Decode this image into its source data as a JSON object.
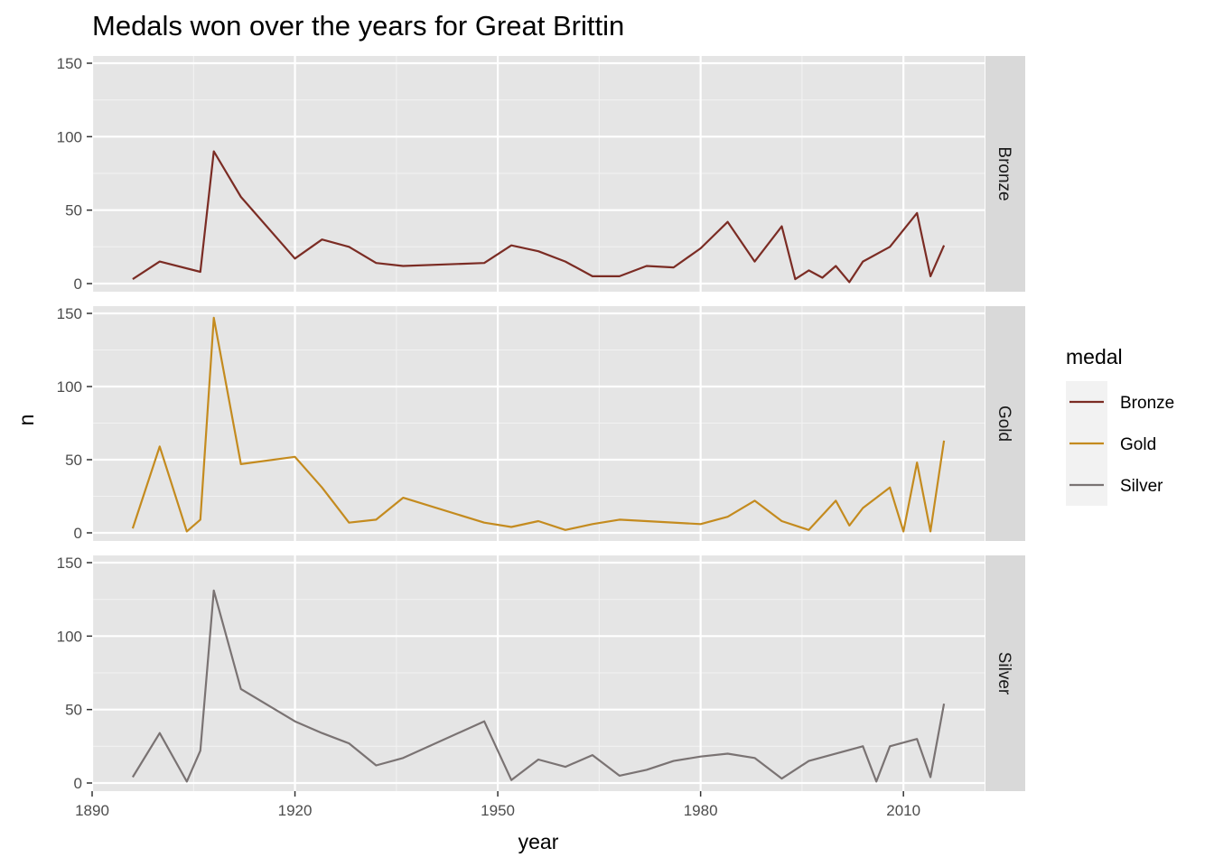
{
  "chart_data": {
    "type": "line",
    "title": "Medals won over the years for Great Brittin",
    "xlabel": "year",
    "ylabel": "n",
    "xlim": [
      1890,
      2022
    ],
    "ylim": [
      0,
      150
    ],
    "x_ticks": [
      1890,
      1920,
      1950,
      1980,
      2010
    ],
    "y_ticks": [
      0,
      50,
      100,
      150
    ],
    "facet_by": "medal",
    "legend": {
      "title": "medal",
      "position": "right"
    },
    "grid": true,
    "series": [
      {
        "name": "Bronze",
        "color": "#7b2c24",
        "points": [
          [
            1896,
            3
          ],
          [
            1900,
            15
          ],
          [
            1906,
            8
          ],
          [
            1908,
            90
          ],
          [
            1912,
            59
          ],
          [
            1920,
            17
          ],
          [
            1924,
            30
          ],
          [
            1928,
            25
          ],
          [
            1932,
            14
          ],
          [
            1936,
            12
          ],
          [
            1948,
            14
          ],
          [
            1952,
            26
          ],
          [
            1956,
            22
          ],
          [
            1960,
            15
          ],
          [
            1964,
            5
          ],
          [
            1968,
            5
          ],
          [
            1972,
            12
          ],
          [
            1976,
            11
          ],
          [
            1980,
            24
          ],
          [
            1984,
            42
          ],
          [
            1988,
            15
          ],
          [
            1992,
            39
          ],
          [
            1994,
            3
          ],
          [
            1996,
            9
          ],
          [
            1998,
            4
          ],
          [
            2000,
            12
          ],
          [
            2002,
            1
          ],
          [
            2004,
            15
          ],
          [
            2008,
            25
          ],
          [
            2012,
            48
          ],
          [
            2014,
            5
          ],
          [
            2016,
            26
          ]
        ]
      },
      {
        "name": "Gold",
        "color": "#c48b1f",
        "points": [
          [
            1896,
            3
          ],
          [
            1900,
            59
          ],
          [
            1904,
            1
          ],
          [
            1906,
            9
          ],
          [
            1908,
            147
          ],
          [
            1912,
            47
          ],
          [
            1920,
            52
          ],
          [
            1924,
            31
          ],
          [
            1928,
            7
          ],
          [
            1932,
            9
          ],
          [
            1936,
            24
          ],
          [
            1948,
            7
          ],
          [
            1952,
            4
          ],
          [
            1956,
            8
          ],
          [
            1960,
            2
          ],
          [
            1964,
            6
          ],
          [
            1968,
            9
          ],
          [
            1980,
            6
          ],
          [
            1984,
            11
          ],
          [
            1988,
            22
          ],
          [
            1992,
            8
          ],
          [
            1996,
            2
          ],
          [
            2000,
            22
          ],
          [
            2002,
            5
          ],
          [
            2004,
            17
          ],
          [
            2008,
            31
          ],
          [
            2010,
            1
          ],
          [
            2012,
            48
          ],
          [
            2014,
            1
          ],
          [
            2016,
            63
          ]
        ]
      },
      {
        "name": "Silver",
        "color": "#7a7373",
        "points": [
          [
            1896,
            4
          ],
          [
            1900,
            34
          ],
          [
            1904,
            1
          ],
          [
            1906,
            22
          ],
          [
            1908,
            131
          ],
          [
            1912,
            64
          ],
          [
            1920,
            42
          ],
          [
            1924,
            34
          ],
          [
            1928,
            27
          ],
          [
            1932,
            12
          ],
          [
            1936,
            17
          ],
          [
            1948,
            42
          ],
          [
            1952,
            2
          ],
          [
            1956,
            16
          ],
          [
            1960,
            11
          ],
          [
            1964,
            19
          ],
          [
            1968,
            5
          ],
          [
            1972,
            9
          ],
          [
            1976,
            15
          ],
          [
            1980,
            18
          ],
          [
            1984,
            20
          ],
          [
            1988,
            17
          ],
          [
            1992,
            3
          ],
          [
            1996,
            15
          ],
          [
            2004,
            25
          ],
          [
            2006,
            1
          ],
          [
            2008,
            25
          ],
          [
            2012,
            30
          ],
          [
            2014,
            4
          ],
          [
            2016,
            54
          ]
        ]
      }
    ]
  }
}
